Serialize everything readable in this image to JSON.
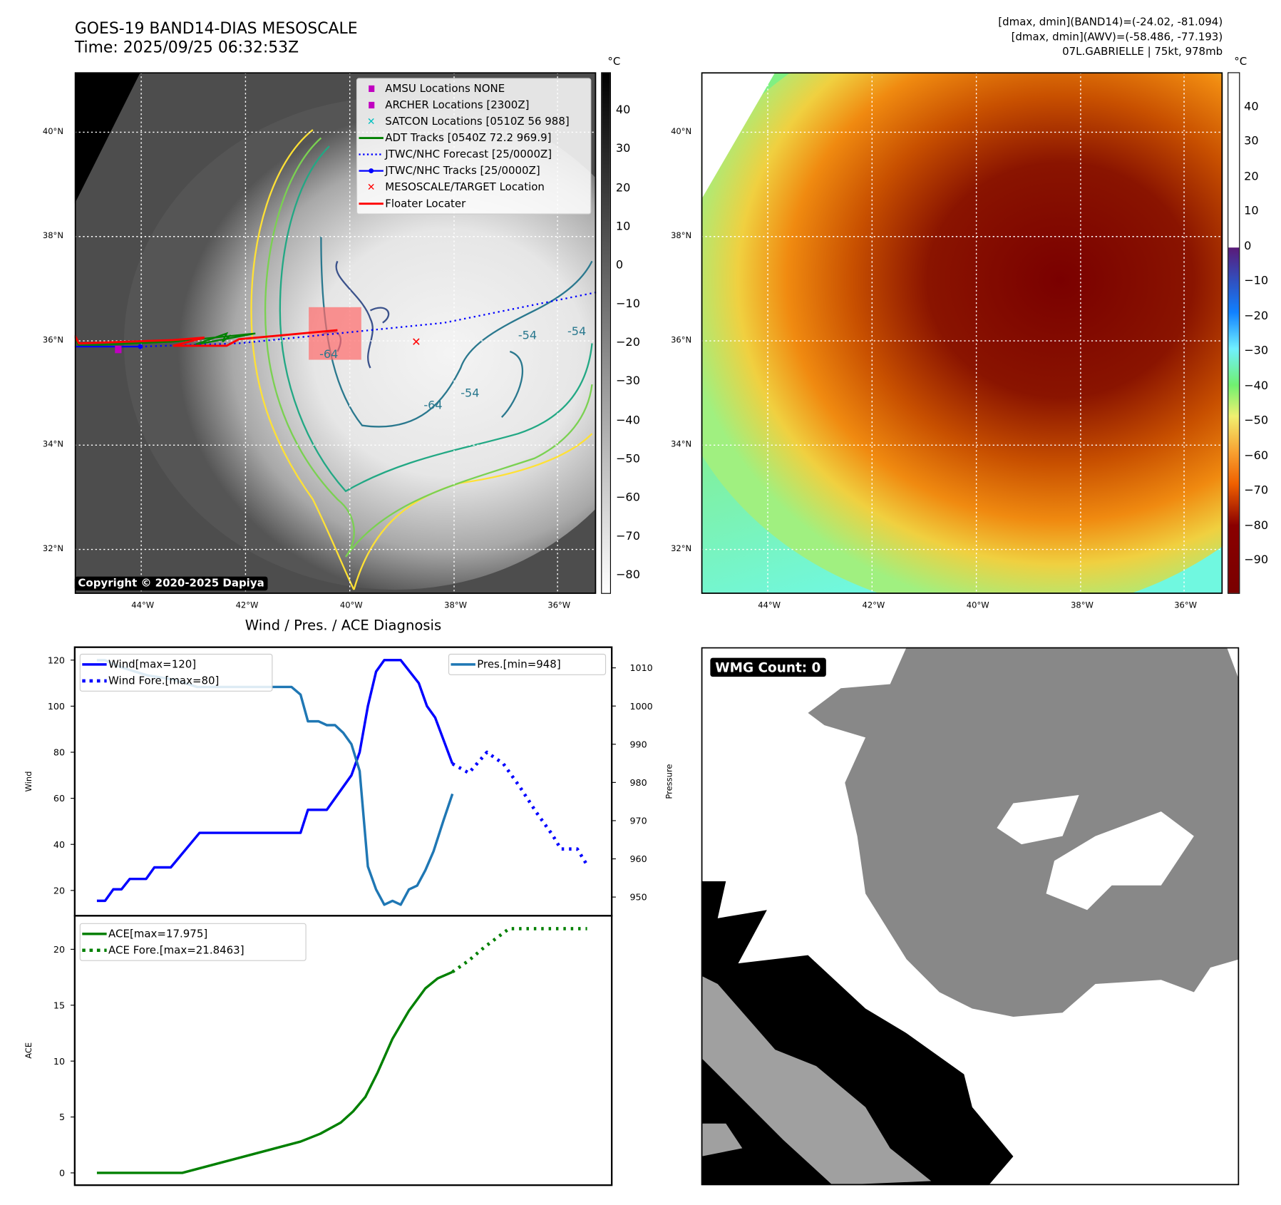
{
  "header": {
    "title": "GOES-19 BAND14-DIAS MESOSCALE",
    "time": "Time: 2025/09/25 06:32:53Z",
    "stats": [
      "[dmax, dmin](BAND14)=(-24.02, -81.094)",
      "[dmax, dmin](AWV)=(-58.486, -77.193)",
      "07L.GABRIELLE | 75kt, 978mb"
    ]
  },
  "map": {
    "lat_labels": [
      "40°N",
      "38°N",
      "36°N",
      "34°N",
      "32°N"
    ],
    "lon_labels": [
      "44°W",
      "42°W",
      "40°W",
      "38°W",
      "36°W"
    ],
    "copyright": "Copyright © 2020-2025 Dapiya",
    "contour_labels": [
      "-54",
      "-64",
      "-54",
      "-64",
      "-54"
    ],
    "legend": [
      {
        "label": "AMSU Locations NONE",
        "symbol": "square",
        "color": "#c000c0"
      },
      {
        "label": "ARCHER Locations [2300Z]",
        "symbol": "square",
        "color": "#c000c0"
      },
      {
        "label": "SATCON Locations [0510Z 56 988]",
        "symbol": "x",
        "color": "#00c0c0"
      },
      {
        "label": "ADT Tracks [0540Z 72.2 969.9]",
        "symbol": "line",
        "color": "#008000"
      },
      {
        "label": "JTWC/NHC Forecast [25/0000Z]",
        "symbol": "dotted",
        "color": "#0000ff"
      },
      {
        "label": "JTWC/NHC Tracks [25/0000Z]",
        "symbol": "line-dot",
        "color": "#0000ff"
      },
      {
        "label": "MESOSCALE/TARGET Location",
        "symbol": "x",
        "color": "#ff0000"
      },
      {
        "label": "Floater Locater",
        "symbol": "line",
        "color": "#ff0000"
      }
    ]
  },
  "colorbar_band14": {
    "unit": "°C",
    "ticks": [
      "40",
      "30",
      "20",
      "10",
      "0",
      "−10",
      "−20",
      "−30",
      "−40",
      "−50",
      "−60",
      "−70",
      "−80"
    ],
    "range": [
      50,
      -84.6
    ]
  },
  "colorbar_awv": {
    "unit": "°C",
    "ticks": [
      "40",
      "30",
      "20",
      "10",
      "0",
      "−10",
      "−20",
      "−30",
      "−40",
      "−50",
      "−60",
      "−70",
      "−80",
      "−90"
    ],
    "range": [
      50,
      -99.4
    ]
  },
  "wmg": {
    "label": "WMG Count: 0"
  },
  "chart_data": {
    "type": "line",
    "title": "Wind / Pres. / ACE Diagnosis",
    "xlim": [
      -2.7,
      62.7
    ],
    "panels": [
      {
        "ylabel": "Wind",
        "ylim": [
          9,
          125.6
        ],
        "yticks": [
          "20",
          "40",
          "60",
          "80",
          "100",
          "120"
        ],
        "y2label": "Pressure",
        "y2lim": [
          945.1,
          1015.4
        ],
        "y2ticks": [
          "950",
          "960",
          "970",
          "980",
          "990",
          "1000",
          "1010"
        ],
        "series": [
          {
            "name": "Wind[max=120]",
            "axis": "left",
            "style": "solid",
            "color": "#0000ff",
            "x": [
              0,
              1,
              2,
              3,
              4,
              6,
              7,
              9,
              12.5,
              24.8,
              25.7,
              28,
              31,
              32,
              33,
              34,
              35,
              37,
              39.2,
              40.2,
              41.2,
              43.3
            ],
            "y": [
              15.5,
              15.5,
              20.5,
              20.5,
              25,
              25,
              30,
              30,
              45,
              45,
              55,
              55,
              70,
              80,
              100,
              115,
              120,
              120,
              110,
              100,
              95,
              75
            ]
          },
          {
            "name": "Wind Fore.[max=80]",
            "axis": "left",
            "style": "dotted",
            "color": "#0000ff",
            "x": [
              43.3,
              45.3,
              47.5,
              49.5,
              51.5,
              53.5,
              55.5,
              56.5,
              58.5,
              59.7
            ],
            "y": [
              75,
              71,
              80,
              75,
              65,
              54,
              44,
              38,
              38,
              31
            ]
          },
          {
            "name": "Pres.[min=948]",
            "axis": "right",
            "style": "solid",
            "color": "#1f77b4",
            "x": [
              0,
              1,
              2,
              3.2,
              6.2,
              9.2,
              12.2,
              23.7,
              24.8,
              25.7,
              27,
              28,
              29,
              30,
              31,
              32,
              33,
              34,
              35,
              36,
              37,
              38,
              39,
              40,
              41,
              42.2,
              43.3
            ],
            "y": [
              1012,
              1012,
              1011,
              1010,
              1008,
              1007,
              1005,
              1005,
              1003,
              996,
              996,
              995,
              995,
              993,
              990,
              983,
              958,
              952,
              948,
              949,
              948,
              952,
              953,
              957,
              962,
              970,
              977
            ]
          }
        ]
      },
      {
        "ylabel": "ACE",
        "ylim": [
          -1.1,
          23.0
        ],
        "yticks": [
          "0",
          "5",
          "10",
          "15",
          "20"
        ],
        "series": [
          {
            "name": "ACE[max=17.975]",
            "style": "solid",
            "color": "#008000",
            "x": [
              0,
              10.4,
              24.8,
              27.2,
              29.7,
              31.2,
              32.7,
              34.2,
              36,
              38,
              40,
              41.5,
              43.3
            ],
            "y": [
              0,
              0,
              2.8,
              3.5,
              4.5,
              5.5,
              6.8,
              9,
              12,
              14.5,
              16.5,
              17.4,
              17.975
            ]
          },
          {
            "name": "ACE Fore.[max=21.8463]",
            "style": "dotted",
            "color": "#008000",
            "x": [
              43.3,
              45.3,
              47.2,
              50.2,
              59.7
            ],
            "y": [
              17.975,
              19,
              20.2,
              21.8463,
              21.8463
            ]
          }
        ]
      }
    ]
  }
}
